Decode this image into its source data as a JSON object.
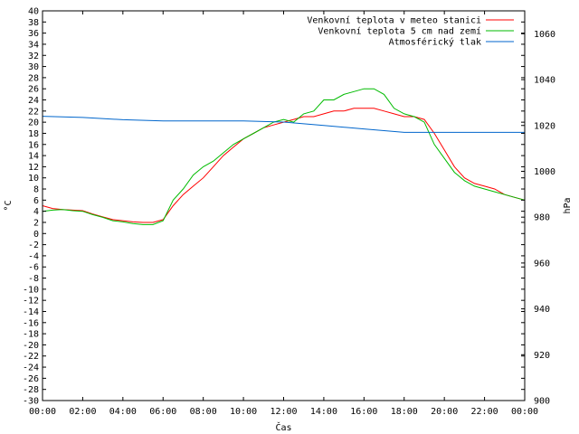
{
  "chart_data": {
    "type": "line",
    "title": "",
    "xlabel": "Čas",
    "ylabel": "°C",
    "y2label": "hPa",
    "xlim": [
      0,
      24
    ],
    "ylim": [
      -30,
      40
    ],
    "y2lim": [
      900,
      1070
    ],
    "grid": false,
    "legend_position": "top-right",
    "x_tick_labels": [
      "00:00",
      "02:00",
      "04:00",
      "06:00",
      "08:00",
      "10:00",
      "12:00",
      "14:00",
      "16:00",
      "18:00",
      "20:00",
      "22:00",
      "00:00"
    ],
    "y_ticks": [
      -30,
      -28,
      -26,
      -24,
      -22,
      -20,
      -18,
      -16,
      -14,
      -12,
      -10,
      -8,
      -6,
      -4,
      -2,
      0,
      2,
      4,
      6,
      8,
      10,
      12,
      14,
      16,
      18,
      20,
      22,
      24,
      26,
      28,
      30,
      32,
      34,
      36,
      38,
      40
    ],
    "y2_ticks": [
      900,
      920,
      940,
      960,
      980,
      1000,
      1020,
      1040,
      1060
    ],
    "series": [
      {
        "name": "Venkovní teplota v meteo stanici",
        "color": "#ff0000",
        "axis": "left",
        "x": [
          0,
          0.5,
          1,
          1.5,
          2,
          2.5,
          3,
          3.5,
          4,
          4.5,
          5,
          5.5,
          6,
          6.5,
          7,
          7.5,
          8,
          8.5,
          9,
          9.5,
          10,
          10.5,
          11,
          11.5,
          12,
          12.5,
          13,
          13.5,
          14,
          14.5,
          15,
          15.5,
          16,
          16.5,
          17,
          17.5,
          18,
          18.5,
          19,
          19.5,
          20,
          20.5,
          21,
          21.5,
          22,
          22.5,
          23,
          23.5,
          24
        ],
        "y": [
          5,
          4.5,
          4.3,
          4.2,
          4.1,
          3.5,
          3,
          2.5,
          2.3,
          2.1,
          2,
          2,
          2.5,
          5,
          7,
          8.5,
          10,
          12,
          14,
          15.5,
          17,
          18,
          19,
          19.5,
          20,
          20.5,
          21,
          21,
          21.5,
          22,
          22,
          22.5,
          22.5,
          22.5,
          22,
          21.5,
          21,
          21,
          20.5,
          18,
          15,
          12,
          10,
          9,
          8.5,
          8,
          7,
          6.5,
          6
        ]
      },
      {
        "name": "Venkovní teplota 5 cm nad zemí",
        "color": "#00bb00",
        "axis": "left",
        "x": [
          0,
          0.5,
          1,
          1.5,
          2,
          2.5,
          3,
          3.5,
          4,
          4.5,
          5,
          5.5,
          6,
          6.5,
          7,
          7.5,
          8,
          8.5,
          9,
          9.5,
          10,
          10.5,
          11,
          11.5,
          12,
          12.5,
          13,
          13.5,
          14,
          14.5,
          15,
          15.5,
          16,
          16.5,
          17,
          17.5,
          18,
          18.5,
          19,
          19.5,
          20,
          20.5,
          21,
          21.5,
          22,
          22.5,
          23,
          23.5,
          24
        ],
        "y": [
          4,
          4.2,
          4.3,
          4.1,
          4,
          3.4,
          2.9,
          2.3,
          2.1,
          1.8,
          1.6,
          1.6,
          2.3,
          6,
          8,
          10.5,
          12,
          13,
          14.5,
          16,
          17,
          18,
          19,
          20,
          20.5,
          20,
          21.5,
          22,
          24,
          24,
          25,
          25.5,
          26,
          26,
          25,
          22.5,
          21.5,
          21,
          20,
          16,
          13.5,
          11,
          9.5,
          8.5,
          8,
          7.5,
          7,
          6.5,
          6
        ]
      },
      {
        "name": "Atmosférický tlak",
        "color": "#0066cc",
        "axis": "right",
        "x": [
          0,
          2,
          4,
          6,
          8,
          10,
          12,
          14,
          16,
          18,
          20,
          22,
          24
        ],
        "y": [
          1024,
          1023.5,
          1022.5,
          1022,
          1022,
          1022,
          1021.5,
          1020,
          1018.5,
          1017,
          1017,
          1017,
          1017
        ]
      }
    ]
  }
}
